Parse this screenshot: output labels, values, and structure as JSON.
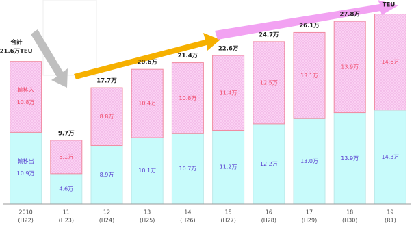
{
  "chart_data": {
    "type": "stacked-bar",
    "categories": [
      "2010",
      "11",
      "12",
      "13",
      "14",
      "15",
      "16",
      "17",
      "18",
      "19"
    ],
    "category_sublabels": [
      "(H22)",
      "(H23)",
      "(H24)",
      "(H25)",
      "(H26)",
      "(H27)",
      "(H28)",
      "(H29)",
      "(H30)",
      "(R1)"
    ],
    "series": [
      {
        "name": "輸移出",
        "color": "#c8fbfb",
        "values": [
          10.9,
          4.6,
          8.9,
          10.1,
          10.7,
          11.2,
          12.2,
          13.0,
          13.9,
          14.3
        ],
        "value_labels": [
          "10.9万",
          "4.6万",
          "8.9万",
          "10.1万",
          "10.7万",
          "11.2万",
          "12.2万",
          "13.0万",
          "13.9万",
          "14.3万"
        ]
      },
      {
        "name": "輸移入",
        "color": "#fbd0f3",
        "values": [
          10.8,
          5.1,
          8.8,
          10.4,
          10.8,
          11.4,
          12.5,
          13.1,
          13.9,
          14.6
        ],
        "value_labels": [
          "10.8万",
          "5.1万",
          "8.8万",
          "10.4万",
          "10.8万",
          "11.4万",
          "12.5万",
          "13.1万",
          "13.9万",
          "14.6万"
        ]
      }
    ],
    "total_label": "合計",
    "totals": {
      "values": [
        21.6,
        9.7,
        17.7,
        20.6,
        21.4,
        22.6,
        24.7,
        26.1,
        27.8,
        null
      ],
      "value_labels": [
        "21.6万TEU",
        "9.7万",
        "17.7万",
        "20.6万",
        "21.4万",
        "22.6万",
        "24.7万",
        "26.1万",
        "27.8万",
        null
      ]
    },
    "annotation": "TEU"
  }
}
